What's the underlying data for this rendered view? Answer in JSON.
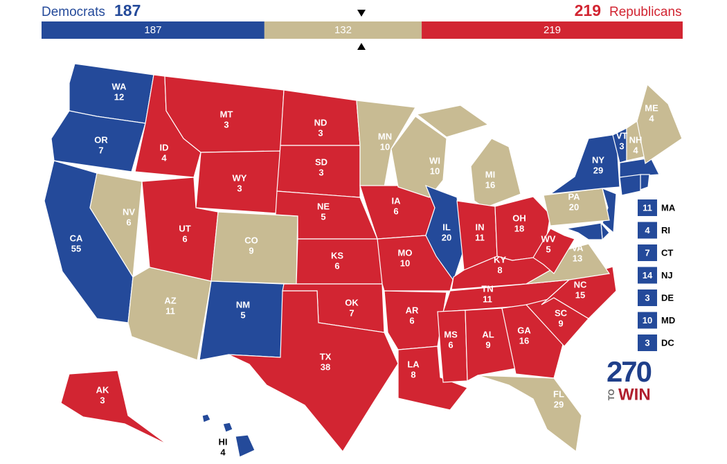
{
  "header": {
    "dem": {
      "name": "Democrats",
      "total": 187,
      "color": "#244a9a"
    },
    "tossup": {
      "total": 132,
      "color": "#c8bb93"
    },
    "rep": {
      "name": "Republicans",
      "total": 219,
      "color": "#d22532"
    }
  },
  "states": [
    {
      "abbr": "WA",
      "votes": 12,
      "party": "dem"
    },
    {
      "abbr": "OR",
      "votes": 7,
      "party": "dem"
    },
    {
      "abbr": "CA",
      "votes": 55,
      "party": "dem"
    },
    {
      "abbr": "NV",
      "votes": 6,
      "party": "tossup"
    },
    {
      "abbr": "ID",
      "votes": 4,
      "party": "rep"
    },
    {
      "abbr": "MT",
      "votes": 3,
      "party": "rep"
    },
    {
      "abbr": "WY",
      "votes": 3,
      "party": "rep"
    },
    {
      "abbr": "UT",
      "votes": 6,
      "party": "rep"
    },
    {
      "abbr": "AZ",
      "votes": 11,
      "party": "tossup"
    },
    {
      "abbr": "CO",
      "votes": 9,
      "party": "tossup"
    },
    {
      "abbr": "NM",
      "votes": 5,
      "party": "dem"
    },
    {
      "abbr": "ND",
      "votes": 3,
      "party": "rep"
    },
    {
      "abbr": "SD",
      "votes": 3,
      "party": "rep"
    },
    {
      "abbr": "NE",
      "votes": 5,
      "party": "rep"
    },
    {
      "abbr": "KS",
      "votes": 6,
      "party": "rep"
    },
    {
      "abbr": "OK",
      "votes": 7,
      "party": "rep"
    },
    {
      "abbr": "TX",
      "votes": 38,
      "party": "rep"
    },
    {
      "abbr": "MN",
      "votes": 10,
      "party": "tossup"
    },
    {
      "abbr": "IA",
      "votes": 6,
      "party": "rep"
    },
    {
      "abbr": "MO",
      "votes": 10,
      "party": "rep"
    },
    {
      "abbr": "AR",
      "votes": 6,
      "party": "rep"
    },
    {
      "abbr": "LA",
      "votes": 8,
      "party": "rep"
    },
    {
      "abbr": "WI",
      "votes": 10,
      "party": "tossup"
    },
    {
      "abbr": "IL",
      "votes": 20,
      "party": "dem"
    },
    {
      "abbr": "MI",
      "votes": 16,
      "party": "tossup"
    },
    {
      "abbr": "IN",
      "votes": 11,
      "party": "rep"
    },
    {
      "abbr": "OH",
      "votes": 18,
      "party": "rep"
    },
    {
      "abbr": "KY",
      "votes": 8,
      "party": "rep"
    },
    {
      "abbr": "TN",
      "votes": 11,
      "party": "rep"
    },
    {
      "abbr": "MS",
      "votes": 6,
      "party": "rep"
    },
    {
      "abbr": "AL",
      "votes": 9,
      "party": "rep"
    },
    {
      "abbr": "GA",
      "votes": 16,
      "party": "rep"
    },
    {
      "abbr": "FL",
      "votes": 29,
      "party": "tossup"
    },
    {
      "abbr": "SC",
      "votes": 9,
      "party": "rep"
    },
    {
      "abbr": "NC",
      "votes": 15,
      "party": "rep"
    },
    {
      "abbr": "VA",
      "votes": 13,
      "party": "tossup"
    },
    {
      "abbr": "WV",
      "votes": 5,
      "party": "rep"
    },
    {
      "abbr": "PA",
      "votes": 20,
      "party": "tossup"
    },
    {
      "abbr": "NY",
      "votes": 29,
      "party": "dem"
    },
    {
      "abbr": "VT",
      "votes": 3,
      "party": "dem"
    },
    {
      "abbr": "NH",
      "votes": 4,
      "party": "tossup"
    },
    {
      "abbr": "ME",
      "votes": 4,
      "party": "tossup"
    },
    {
      "abbr": "AK",
      "votes": 3,
      "party": "rep"
    },
    {
      "abbr": "HI",
      "votes": 4,
      "party": "dem"
    }
  ],
  "small_states": [
    {
      "abbr": "MA",
      "votes": 11,
      "party": "dem"
    },
    {
      "abbr": "RI",
      "votes": 4,
      "party": "dem"
    },
    {
      "abbr": "CT",
      "votes": 7,
      "party": "dem"
    },
    {
      "abbr": "NJ",
      "votes": 14,
      "party": "dem"
    },
    {
      "abbr": "DE",
      "votes": 3,
      "party": "dem"
    },
    {
      "abbr": "MD",
      "votes": 10,
      "party": "dem"
    },
    {
      "abbr": "DC",
      "votes": 3,
      "party": "dem"
    }
  ],
  "logo": {
    "number": "270",
    "to": "TO",
    "win": "WIN"
  }
}
